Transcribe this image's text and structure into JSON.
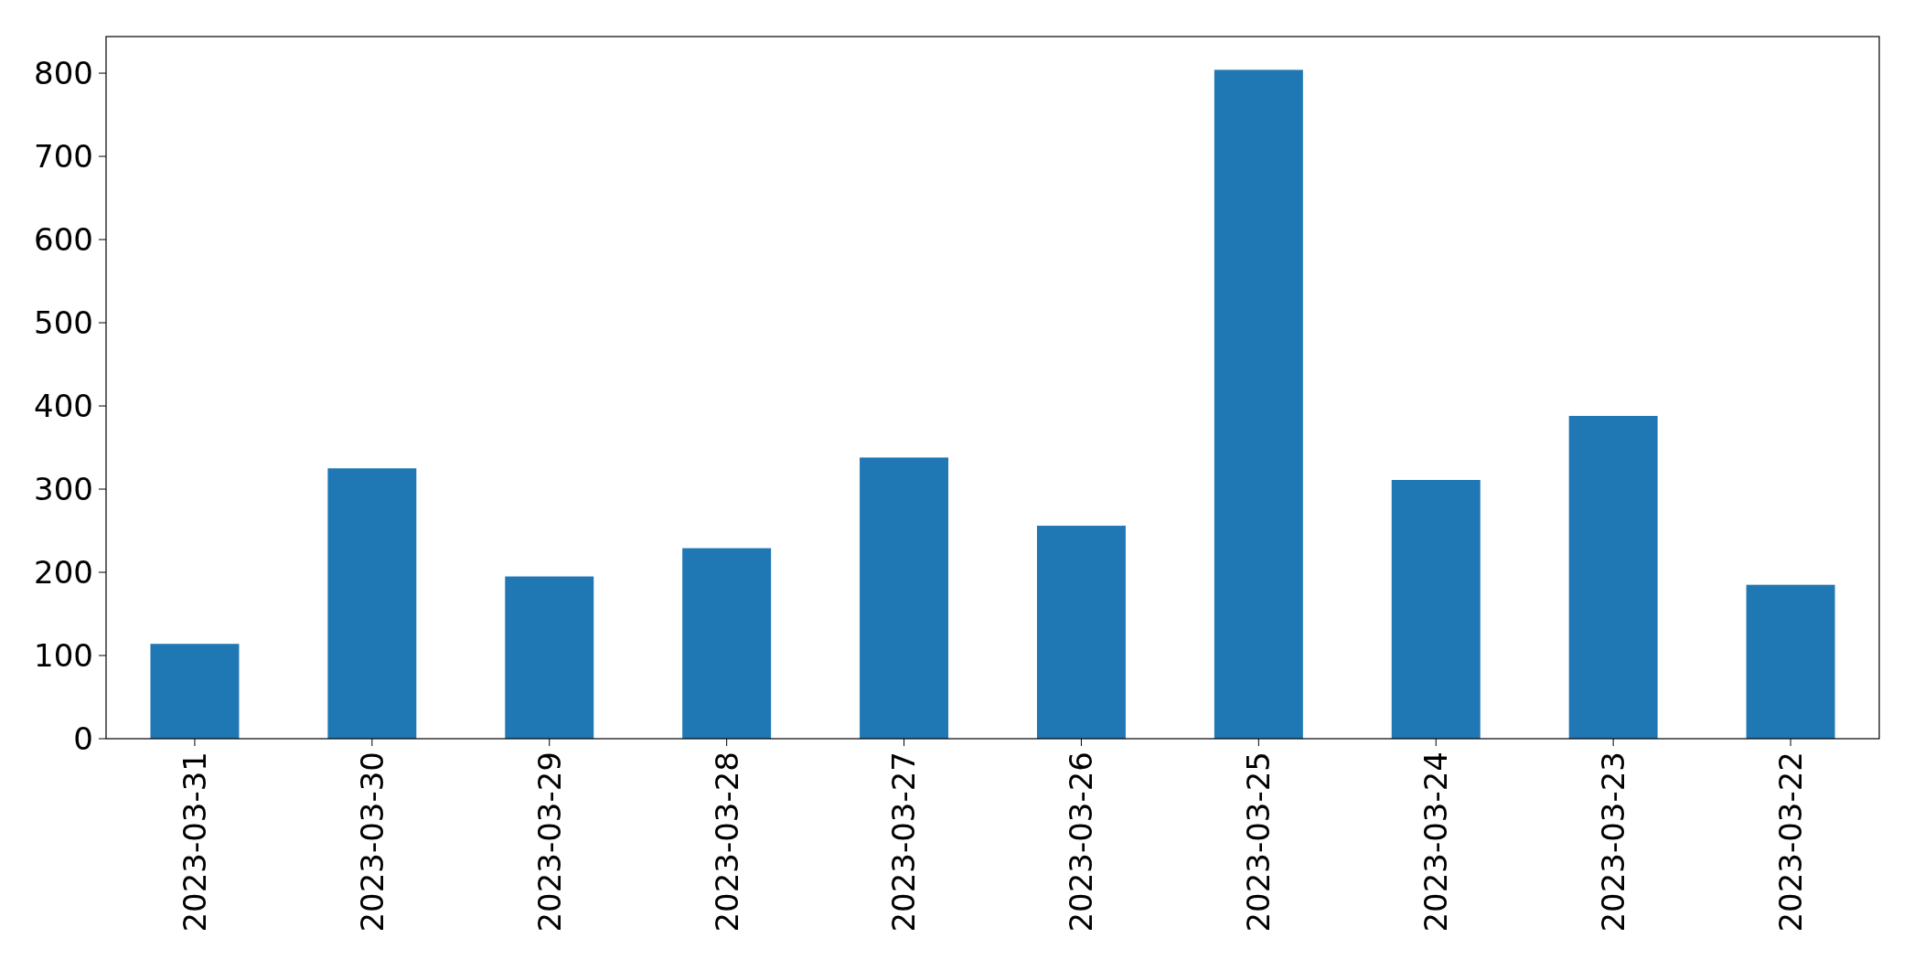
{
  "chart_data": {
    "type": "bar",
    "categories": [
      "2023-03-31",
      "2023-03-30",
      "2023-03-29",
      "2023-03-28",
      "2023-03-27",
      "2023-03-26",
      "2023-03-25",
      "2023-03-24",
      "2023-03-23",
      "2023-03-22"
    ],
    "values": [
      114,
      325,
      195,
      229,
      338,
      256,
      804,
      311,
      388,
      185
    ],
    "color": "#1f77b4",
    "ylim": [
      0,
      844
    ],
    "yticks": [
      0,
      100,
      200,
      300,
      400,
      500,
      600,
      700,
      800
    ],
    "grid": false
  }
}
